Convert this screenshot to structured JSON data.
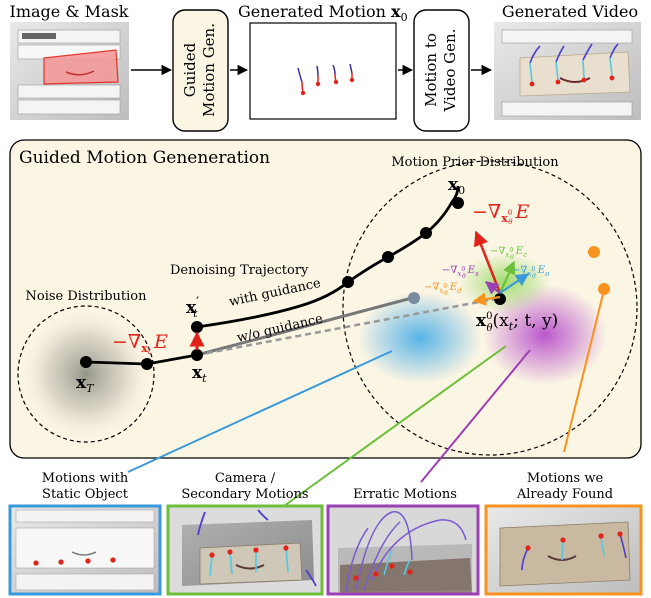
{
  "top": {
    "image_mask_label": "Image & Mask",
    "guided_box_line1": "Guided",
    "guided_box_line2": "Motion Gen.",
    "generated_motion_label": "Generated Motion ",
    "generated_motion_symbol": "x",
    "generated_motion_sub": "0",
    "motion_to_video_line1": "Motion to",
    "motion_to_video_line2": "Video Gen.",
    "generated_video_label": "Generated Video"
  },
  "panel": {
    "title": "Guided Motion Geneneration",
    "prior_label": "Motion Prior Distribution",
    "noise_label": "Noise Distribution",
    "trajectory_label": "Denoising Trajectory",
    "with_guidance": "with guidance",
    "without_guidance": "w/o guidance",
    "x0": "x",
    "x0_sub": "0",
    "xT": "x",
    "xT_sub": "T",
    "xt": "x",
    "xt_sub": "t",
    "xt_prime": "x",
    "xt_prime_sub": "t",
    "xt_prime_mark": "′",
    "grad_xt": "−∇",
    "grad_xt_sub": "x",
    "grad_xt_sub2": "t",
    "grad_xt_E": "E",
    "grad_x0": "−∇",
    "grad_x0_sub": "x",
    "grad_x0_sub_sub": "θ",
    "grad_x0_sub_sup": "0",
    "grad_x0_E": "E",
    "pred_label": "x",
    "pred_sup": "0",
    "pred_sub": "θ",
    "pred_args": "(x",
    "pred_args_sub": "t",
    "pred_args_tail": "; t, y)",
    "grad_c": "−∇",
    "grad_c_E": "E",
    "grad_c_sub": "c",
    "grad_o": "−∇",
    "grad_o_E": "E",
    "grad_o_sub": "o",
    "grad_s": "−∇",
    "grad_s_E": "E",
    "grad_s_sub": "s",
    "grad_d": "−∇",
    "grad_d_E": "E",
    "grad_d_sub": "d",
    "grad_small_sub": "x",
    "grad_small_sub_sup": "0",
    "grad_small_sub_sub": "θ"
  },
  "bottom": {
    "static_label_1": "Motions with",
    "static_label_2": "Static Object",
    "camera_label_1": "Camera /",
    "camera_label_2": "Secondary Motions",
    "erratic_label": "Erratic Motions",
    "found_label_1": "Motions we",
    "found_label_2": "Already Found"
  },
  "colors": {
    "panel_bg": "#fbf5e4",
    "red": "#e2231a",
    "blue": "#3a9ad9",
    "green": "#6cbf3b",
    "purple": "#9b3fb5",
    "orange": "#f7931e",
    "gray": "#777777"
  }
}
